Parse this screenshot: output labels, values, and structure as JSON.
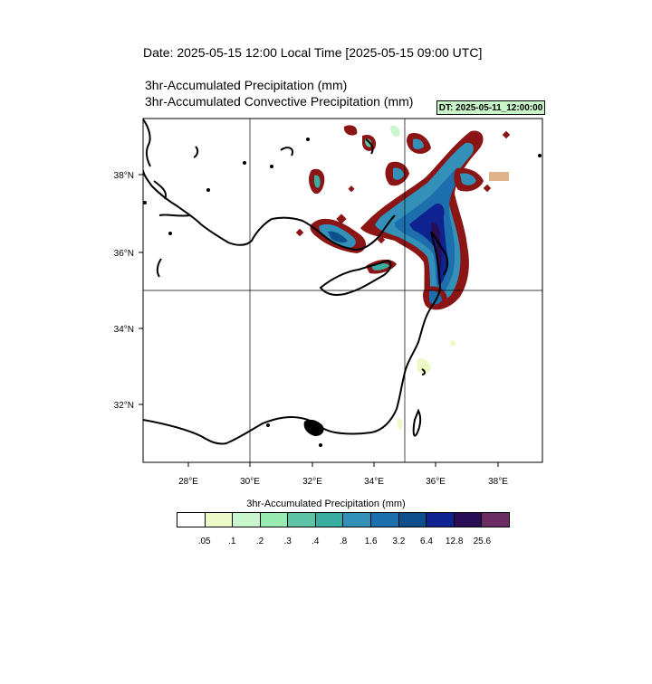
{
  "header": {
    "date_line": "Date: 2025-05-15  12:00 Local Time [2025-05-15  09:00 UTC]",
    "title_line_1": "3hr-Accumulated Precipitation   (mm)",
    "title_line_2": "3hr-Accumulated Convective Precipitation   (mm)",
    "dt_badge": "DT: 2025-05-11_12:00:00",
    "dt_badge_color": "#c8f5c8"
  },
  "map": {
    "lon_range": [
      26.6,
      39.4
    ],
    "lat_range": [
      30.5,
      39.5
    ],
    "lon_ticks": [
      "28°E",
      "30°E",
      "32°E",
      "34°E",
      "36°E",
      "38°E"
    ],
    "lat_ticks": [
      "32°N",
      "34°N",
      "36°N",
      "38°N"
    ],
    "gridlines": {
      "lon": [
        30,
        35
      ],
      "lat": [
        35
      ]
    }
  },
  "colorbar": {
    "title": "3hr-Accumulated Precipitation   (mm)",
    "labels": [
      ".05",
      ".1",
      ".2",
      ".3",
      ".4",
      ".8",
      "1.6",
      "3.2",
      "6.4",
      "12.8",
      "25.6"
    ],
    "colors": [
      "#ffffff",
      "#eef9c8",
      "#c9f6cc",
      "#99ecb1",
      "#5ec4a5",
      "#39aea0",
      "#3390b8",
      "#1c6ead",
      "#0d4f8a",
      "#0f2390",
      "#2a0e55",
      "#6b2c64"
    ]
  }
}
